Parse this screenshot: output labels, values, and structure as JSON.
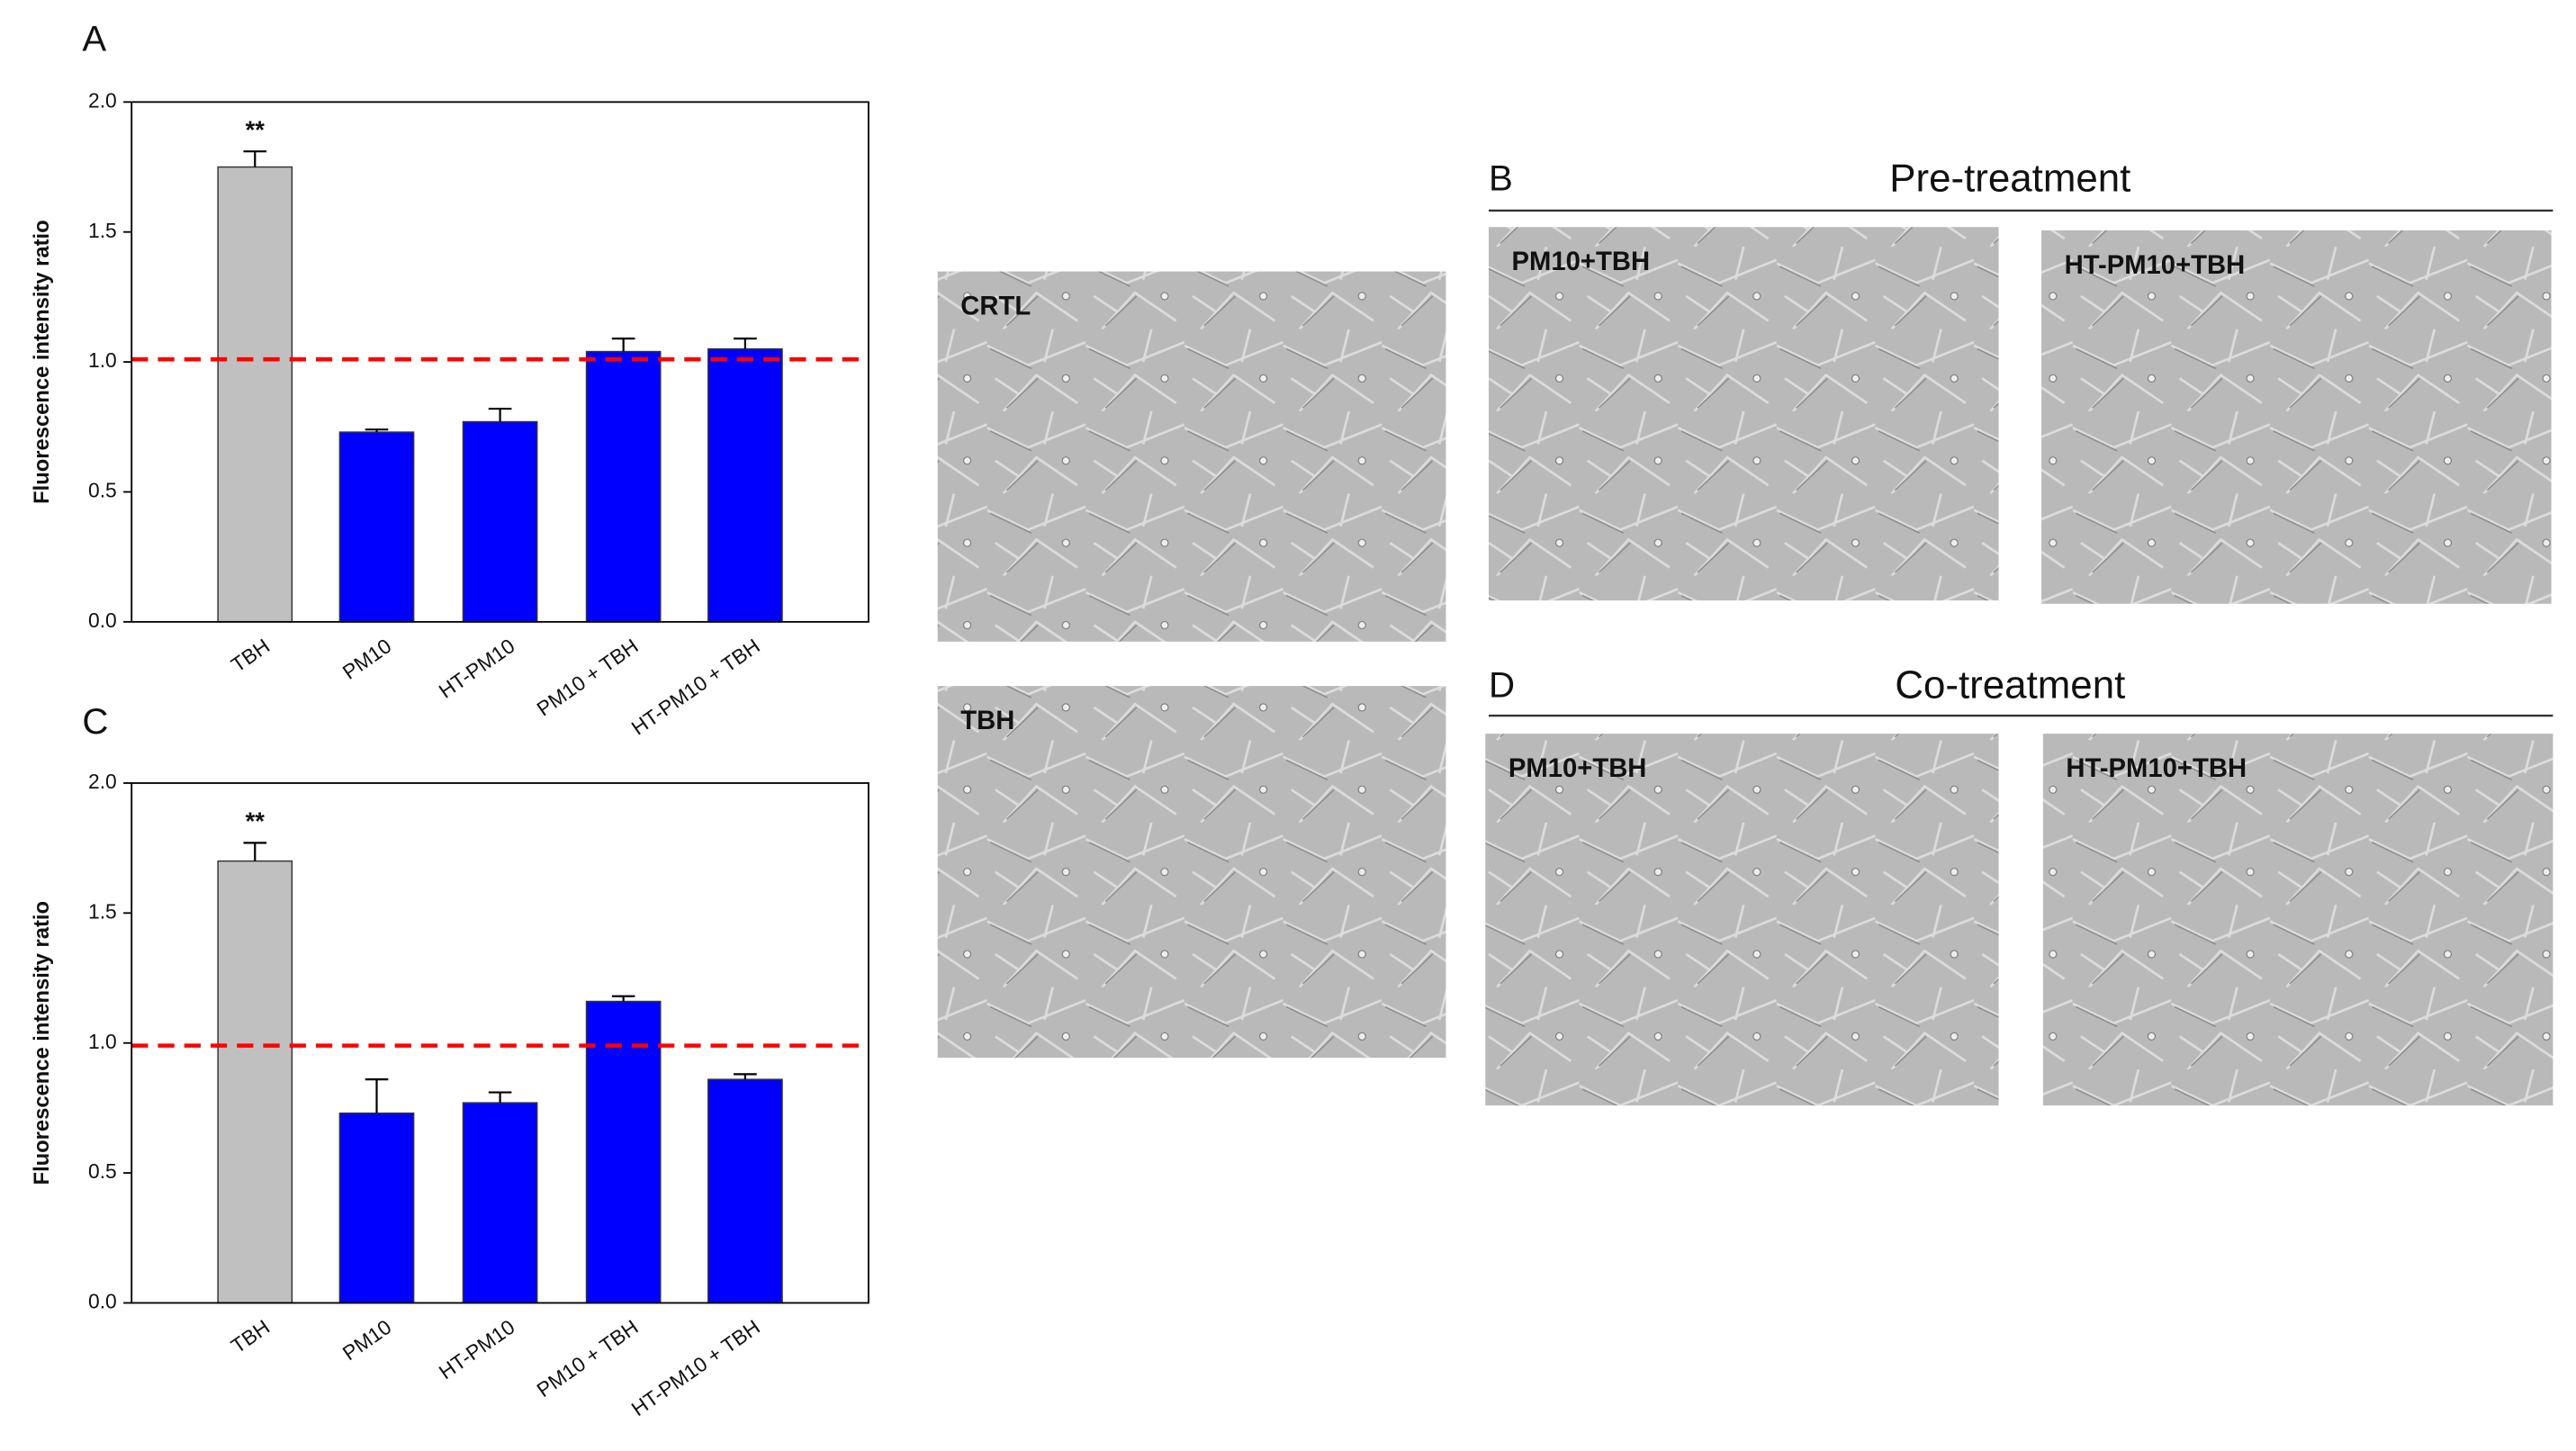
{
  "chart_data": [
    {
      "type": "bar",
      "panel": "A",
      "ylabel": "Fluorescence intensity ratio",
      "categories": [
        "TBH",
        "PM10",
        "HT-PM10",
        "PM10 + TBH",
        "HT-PM10 + TBH"
      ],
      "values": [
        1.75,
        0.73,
        0.77,
        1.04,
        1.05
      ],
      "errors": [
        0.06,
        0.01,
        0.05,
        0.05,
        0.04
      ],
      "significance": [
        "**",
        null,
        null,
        null,
        null
      ],
      "colors": [
        "#c0c0c0",
        "#0000ff",
        "#0000ff",
        "#0000ff",
        "#0000ff"
      ],
      "reference_line": 1.01,
      "reference_color": "#ff0000",
      "ylim": [
        0,
        2
      ],
      "yticks": [
        {
          "value": 0,
          "label": "0.0"
        },
        {
          "value": 0.5,
          "label": "0.5"
        },
        {
          "value": 1,
          "label": "1.0"
        },
        {
          "value": 1.5,
          "label": "1.5"
        },
        {
          "value": 2,
          "label": "2.0"
        }
      ]
    },
    {
      "type": "bar",
      "panel": "C",
      "ylabel": "Fluorescence intensity ratio",
      "categories": [
        "TBH",
        "PM10",
        "HT-PM10",
        "PM10 + TBH",
        "HT-PM10 + TBH"
      ],
      "values": [
        1.7,
        0.73,
        0.77,
        1.16,
        0.86
      ],
      "errors": [
        0.07,
        0.13,
        0.04,
        0.02,
        0.02
      ],
      "significance": [
        "**",
        null,
        null,
        null,
        null
      ],
      "colors": [
        "#c0c0c0",
        "#0000ff",
        "#0000ff",
        "#0000ff",
        "#0000ff"
      ],
      "reference_line": 0.99,
      "reference_color": "#ff0000",
      "ylim": [
        0,
        2
      ],
      "yticks": [
        {
          "value": 0,
          "label": "0.0"
        },
        {
          "value": 0.5,
          "label": "0.5"
        },
        {
          "value": 1,
          "label": "1.0"
        },
        {
          "value": 1.5,
          "label": "1.5"
        },
        {
          "value": 2,
          "label": "2.0"
        }
      ]
    }
  ],
  "images": [
    "CRTL",
    "TBH"
  ],
  "groups": [
    {
      "panel": "B",
      "title": "Pre-treatment",
      "images": [
        "PM10+TBH",
        "HT-PM10+TBH"
      ]
    },
    {
      "panel": "D",
      "title": "Co-treatment",
      "images": [
        "PM10+TBH",
        "HT-PM10+TBH"
      ]
    }
  ]
}
